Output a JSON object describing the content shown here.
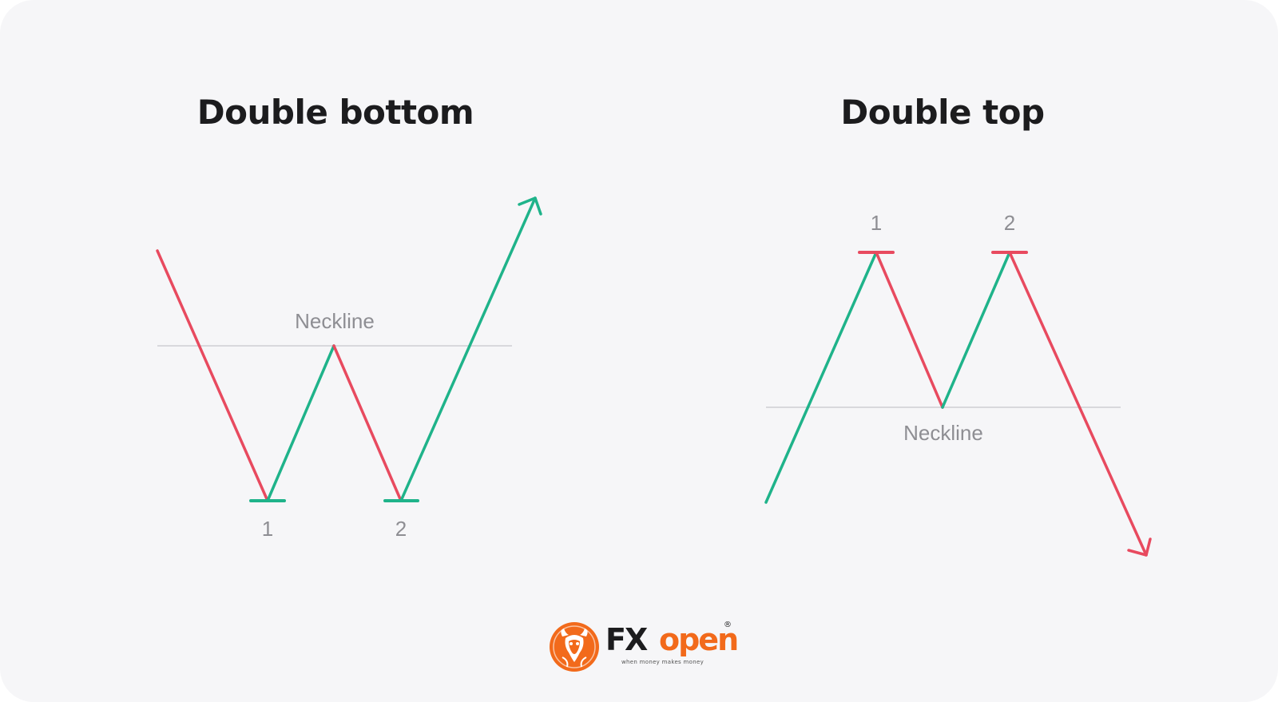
{
  "left_panel": {
    "title": "Double bottom",
    "neckline_label": "Neckline",
    "point_labels": [
      "1",
      "2"
    ]
  },
  "right_panel": {
    "title": "Double top",
    "neckline_label": "Neckline",
    "point_labels": [
      "1",
      "2"
    ]
  },
  "logo": {
    "brand_dark": "FX",
    "brand_accent": "open",
    "registered_mark": "®",
    "tagline": "when money makes money",
    "icon": "bull-head-logo-icon"
  },
  "colors": {
    "background": "#f6f6f8",
    "bullish": "#1fb38a",
    "bearish": "#e84a5f",
    "neckline": "#d8d8dc",
    "label": "#8e8e93",
    "brand_orange": "#f26a1b"
  }
}
